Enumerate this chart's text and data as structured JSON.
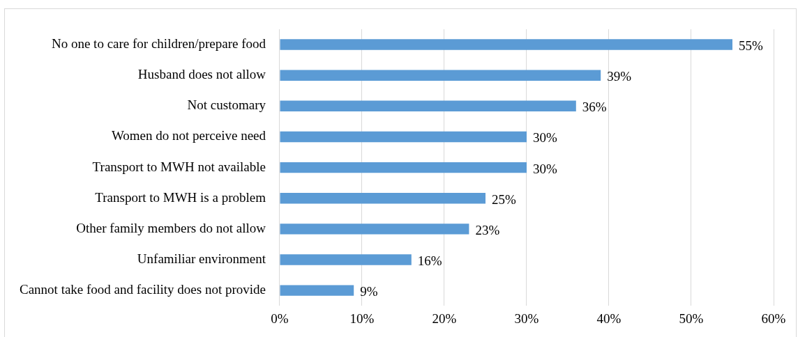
{
  "chart_data": {
    "type": "bar",
    "orientation": "horizontal",
    "categories": [
      "No one to care for children/prepare food",
      "Husband does not allow",
      "Not customary",
      "Women do not perceive need",
      "Transport to MWH not available",
      "Transport to MWH is a problem",
      "Other family members do not allow",
      "Unfamiliar environment",
      "Cannot take food and facility does not provide"
    ],
    "values": [
      55,
      39,
      36,
      30,
      30,
      25,
      23,
      16,
      9
    ],
    "value_labels": [
      "55%",
      "39%",
      "36%",
      "30%",
      "30%",
      "25%",
      "23%",
      "16%",
      "9%"
    ],
    "color": "#5b9bd5",
    "xlim": [
      0,
      60
    ],
    "xticks": [
      {
        "value": 0,
        "label": "0%"
      },
      {
        "value": 10,
        "label": "10%"
      },
      {
        "value": 20,
        "label": "20%"
      },
      {
        "value": 30,
        "label": "30%"
      },
      {
        "value": 40,
        "label": "40%"
      },
      {
        "value": 50,
        "label": "50%"
      },
      {
        "value": 60,
        "label": "60%"
      }
    ],
    "grid": "x",
    "legend": false
  }
}
